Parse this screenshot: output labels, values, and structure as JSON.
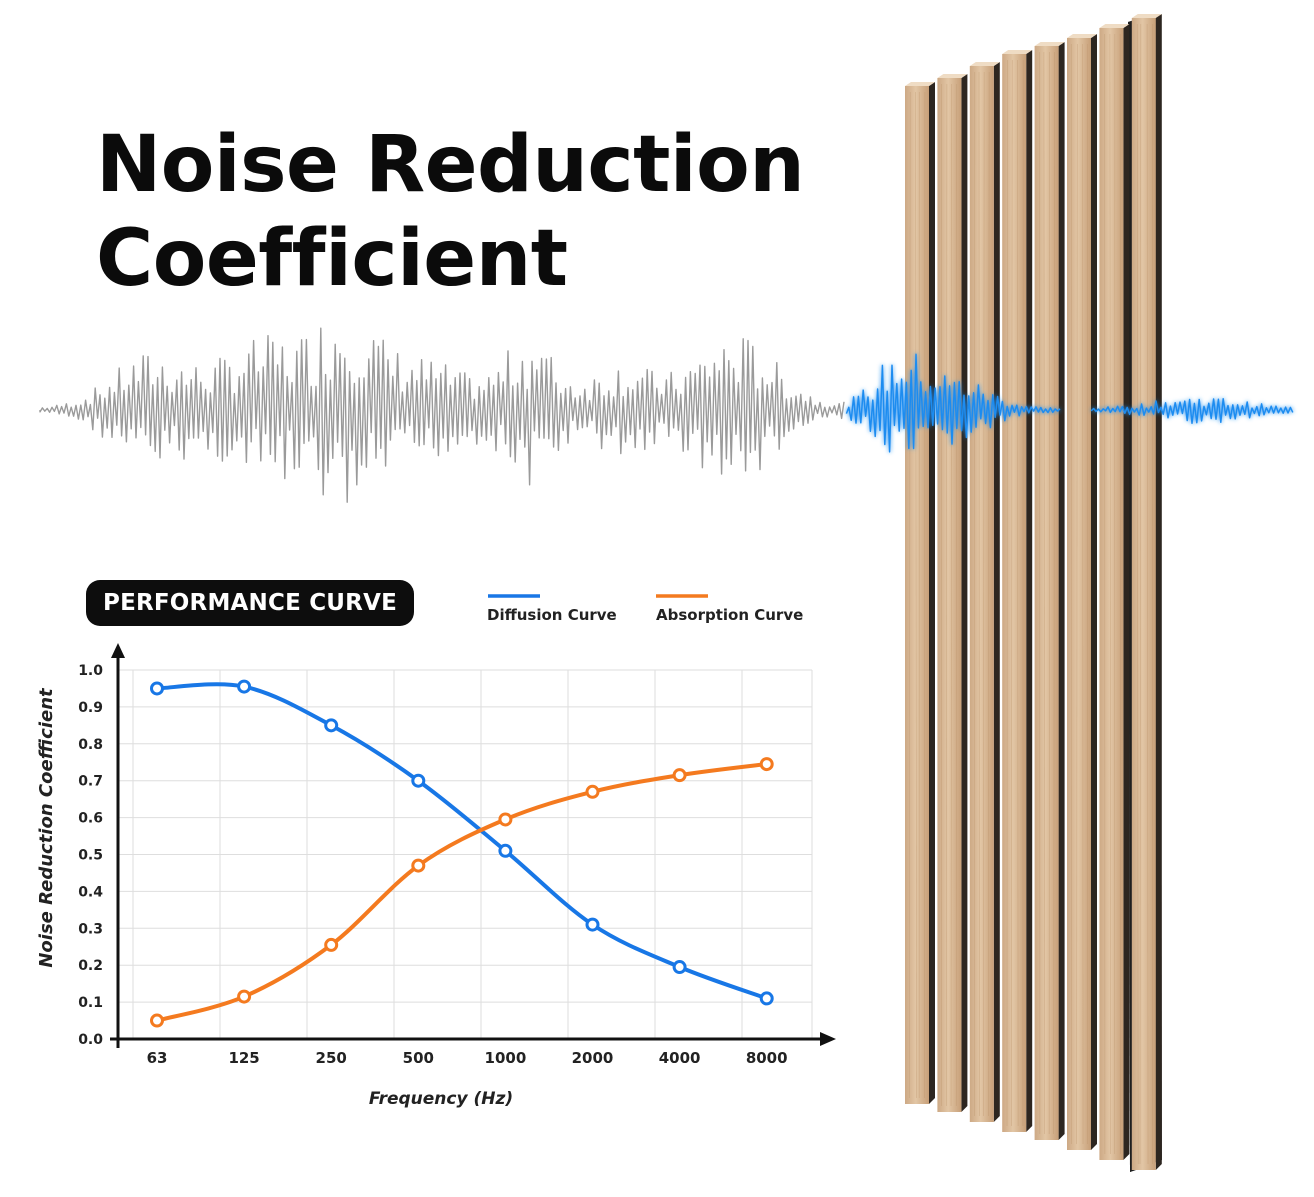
{
  "title": {
    "line1": "Noise Reduction",
    "line2": "Coefficient"
  },
  "badge": "PERFORMANCE CURVE",
  "colors": {
    "diffusion": "#1877e6",
    "absorption": "#f47a1f",
    "wave_gray": "#9a9a9a",
    "wave_blue": "#1e8cf0"
  },
  "chart_data": {
    "type": "line",
    "xlabel": "Frequency (Hz)",
    "ylabel": "Noise Reduction Coefficient",
    "categories": [
      "63",
      "125",
      "250",
      "500",
      "1000",
      "2000",
      "4000",
      "8000"
    ],
    "y_ticks": [
      "0.0",
      "0.1",
      "0.2",
      "0.3",
      "0.4",
      "0.5",
      "0.6",
      "0.7",
      "0.8",
      "0.9",
      "1.0"
    ],
    "ylim": [
      0,
      1
    ],
    "grid": true,
    "legend_position": "top",
    "series": [
      {
        "name": "Diffusion Curve",
        "color": "#1877e6",
        "values": [
          0.95,
          0.955,
          0.85,
          0.7,
          0.51,
          0.31,
          0.195,
          0.11
        ]
      },
      {
        "name": "Absorption Curve",
        "color": "#f47a1f",
        "values": [
          0.05,
          0.115,
          0.255,
          0.47,
          0.595,
          0.67,
          0.715,
          0.745
        ]
      }
    ]
  }
}
